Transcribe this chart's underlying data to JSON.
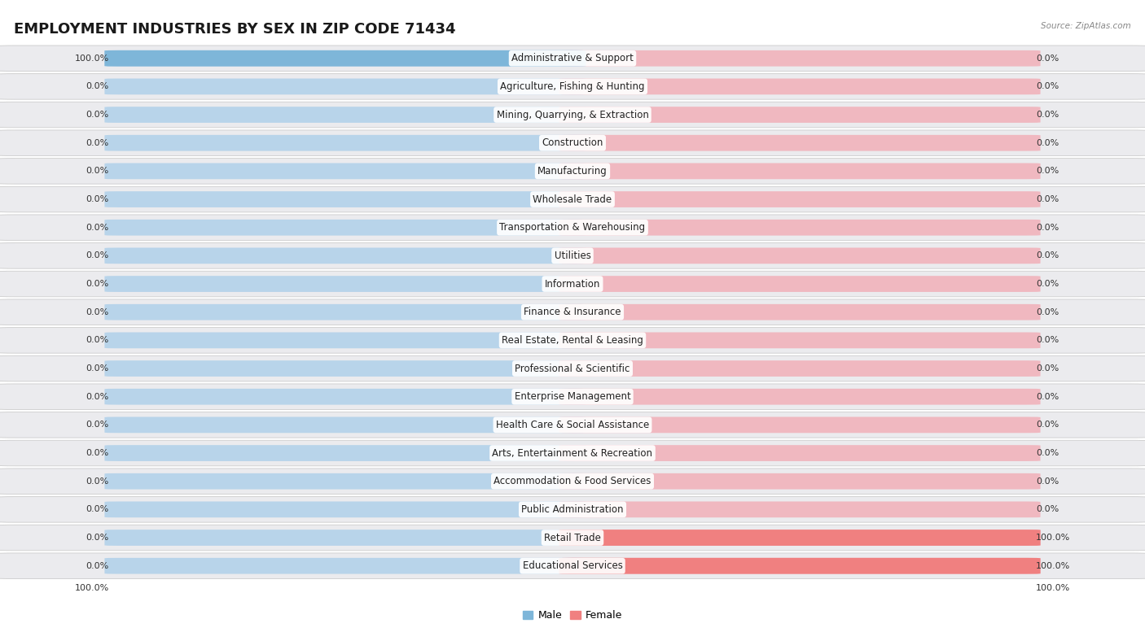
{
  "title": "EMPLOYMENT INDUSTRIES BY SEX IN ZIP CODE 71434",
  "source": "Source: ZipAtlas.com",
  "categories": [
    "Administrative & Support",
    "Agriculture, Fishing & Hunting",
    "Mining, Quarrying, & Extraction",
    "Construction",
    "Manufacturing",
    "Wholesale Trade",
    "Transportation & Warehousing",
    "Utilities",
    "Information",
    "Finance & Insurance",
    "Real Estate, Rental & Leasing",
    "Professional & Scientific",
    "Enterprise Management",
    "Health Care & Social Assistance",
    "Arts, Entertainment & Recreation",
    "Accommodation & Food Services",
    "Public Administration",
    "Retail Trade",
    "Educational Services"
  ],
  "male_pct": [
    100.0,
    0.0,
    0.0,
    0.0,
    0.0,
    0.0,
    0.0,
    0.0,
    0.0,
    0.0,
    0.0,
    0.0,
    0.0,
    0.0,
    0.0,
    0.0,
    0.0,
    0.0,
    0.0
  ],
  "female_pct": [
    0.0,
    0.0,
    0.0,
    0.0,
    0.0,
    0.0,
    0.0,
    0.0,
    0.0,
    0.0,
    0.0,
    0.0,
    0.0,
    0.0,
    0.0,
    0.0,
    0.0,
    100.0,
    100.0
  ],
  "male_color": "#7EB6D9",
  "female_color": "#F08080",
  "male_bg_color": "#B8D4EA",
  "female_bg_color": "#F0B8C0",
  "row_color": "#E8E8EC",
  "title_fontsize": 13,
  "label_fontsize": 8.5,
  "value_fontsize": 8.0,
  "background_color": "#FFFFFF",
  "bottom_labels": [
    "100.0%",
    "100.0%"
  ]
}
